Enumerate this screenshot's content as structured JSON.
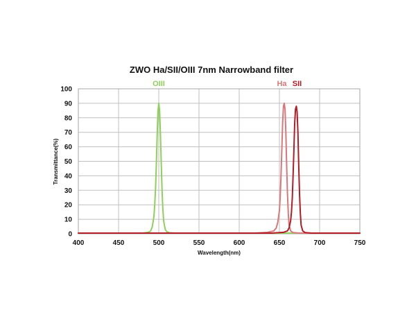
{
  "chart_data": {
    "type": "line",
    "title": "ZWO Ha/SII/OIII 7nm Narrowband filter",
    "xlabel": "Wavelength(nm)",
    "ylabel": "Transmittance(%)",
    "xlim": [
      400,
      750
    ],
    "ylim": [
      0,
      100
    ],
    "xticks": [
      400,
      450,
      500,
      550,
      600,
      650,
      700,
      750
    ],
    "yticks": [
      0,
      10,
      20,
      30,
      40,
      50,
      60,
      70,
      80,
      90,
      100
    ],
    "grid": true,
    "series": [
      {
        "name": "OIII",
        "color": "#8ed05a",
        "label_x": 500,
        "x": [
          400,
          480,
          487,
          490,
          492,
          494,
          495,
          496,
          497,
          498,
          499,
          500,
          501,
          502,
          503,
          504,
          505,
          506,
          508,
          510,
          513,
          520,
          750
        ],
        "y": [
          0.5,
          0.5,
          1,
          2,
          5,
          12,
          20,
          32,
          48,
          68,
          84,
          90,
          85,
          70,
          50,
          32,
          18,
          9,
          3,
          1.5,
          0.7,
          0.5,
          0.5
        ]
      },
      {
        "name": "Ha",
        "color": "#d9787a",
        "label_x": 653,
        "x": [
          400,
          620,
          635,
          643,
          646,
          648,
          650,
          651,
          652,
          653,
          654,
          655,
          656,
          657,
          658,
          659,
          660,
          661,
          662,
          664,
          667,
          675,
          750
        ],
        "y": [
          0.5,
          0.5,
          1,
          2,
          4,
          8,
          16,
          26,
          40,
          58,
          76,
          88,
          90,
          86,
          70,
          48,
          28,
          14,
          6,
          2,
          0.8,
          0.5,
          0.5
        ]
      },
      {
        "name": "SII",
        "color": "#b31c24",
        "label_x": 672,
        "x": [
          400,
          640,
          655,
          660,
          662,
          664,
          665,
          666,
          667,
          668,
          669,
          670,
          671,
          672,
          673,
          674,
          675,
          676,
          677,
          679,
          682,
          690,
          750
        ],
        "y": [
          0.5,
          0.5,
          1,
          2,
          4,
          9,
          15,
          25,
          40,
          58,
          76,
          86,
          88,
          84,
          70,
          48,
          28,
          14,
          6,
          2,
          0.8,
          0.5,
          0.5
        ]
      }
    ]
  }
}
